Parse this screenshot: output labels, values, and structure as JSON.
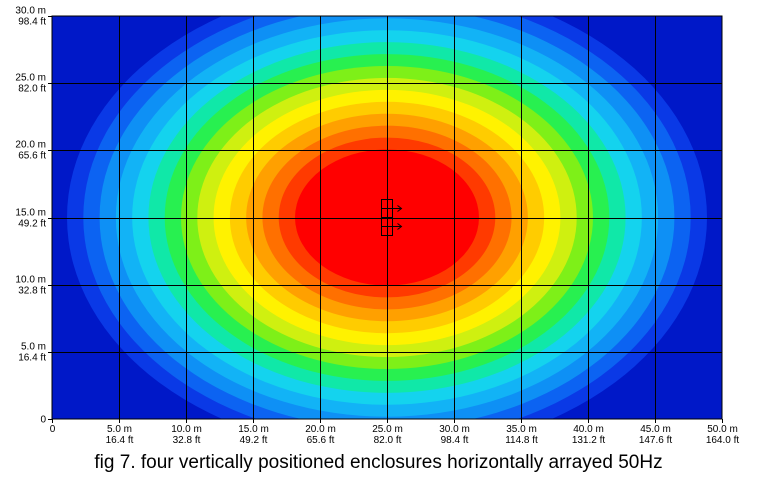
{
  "chart_data": {
    "type": "heatmap",
    "caption": "fig 7. four vertically positioned enclosures horizontally arrayed 50Hz",
    "x_range": [
      0,
      50
    ],
    "y_range": [
      0,
      30
    ],
    "x_ticks": [
      {
        "value": 0,
        "m": "0",
        "ft": ""
      },
      {
        "value": 5,
        "m": "5.0 m",
        "ft": "16.4 ft"
      },
      {
        "value": 10,
        "m": "10.0 m",
        "ft": "32.8 ft"
      },
      {
        "value": 15,
        "m": "15.0 m",
        "ft": "49.2 ft"
      },
      {
        "value": 20,
        "m": "20.0 m",
        "ft": "65.6 ft"
      },
      {
        "value": 25,
        "m": "25.0 m",
        "ft": "82.0 ft"
      },
      {
        "value": 30,
        "m": "30.0 m",
        "ft": "98.4 ft"
      },
      {
        "value": 35,
        "m": "35.0 m",
        "ft": "114.8 ft"
      },
      {
        "value": 40,
        "m": "40.0 m",
        "ft": "131.2 ft"
      },
      {
        "value": 45,
        "m": "45.0 m",
        "ft": "147.6 ft"
      },
      {
        "value": 50,
        "m": "50.0 m",
        "ft": "164.0 ft"
      }
    ],
    "y_ticks": [
      {
        "value": 0,
        "m": "0",
        "ft": ""
      },
      {
        "value": 5,
        "m": "5.0 m",
        "ft": "16.4 ft"
      },
      {
        "value": 10,
        "m": "10.0 m",
        "ft": "32.8 ft"
      },
      {
        "value": 15,
        "m": "15.0 m",
        "ft": "49.2 ft"
      },
      {
        "value": 20,
        "m": "20.0 m",
        "ft": "65.6 ft"
      },
      {
        "value": 25,
        "m": "25.0 m",
        "ft": "82.0 ft"
      },
      {
        "value": 30,
        "m": "30.0 m",
        "ft": "98.4 ft"
      }
    ],
    "source_position": {
      "x": 25,
      "y": 15
    },
    "enclosure_count": 4,
    "color_scale": [
      "#0018c8",
      "#0a39e6",
      "#0c63f2",
      "#0e90f5",
      "#12b3f6",
      "#14d3ee",
      "#10e8a8",
      "#28f050",
      "#7ef018",
      "#cff010",
      "#fff200",
      "#ffcc00",
      "#ffa000",
      "#ff7000",
      "#ff3a00",
      "#ff0000"
    ],
    "grid": true
  }
}
